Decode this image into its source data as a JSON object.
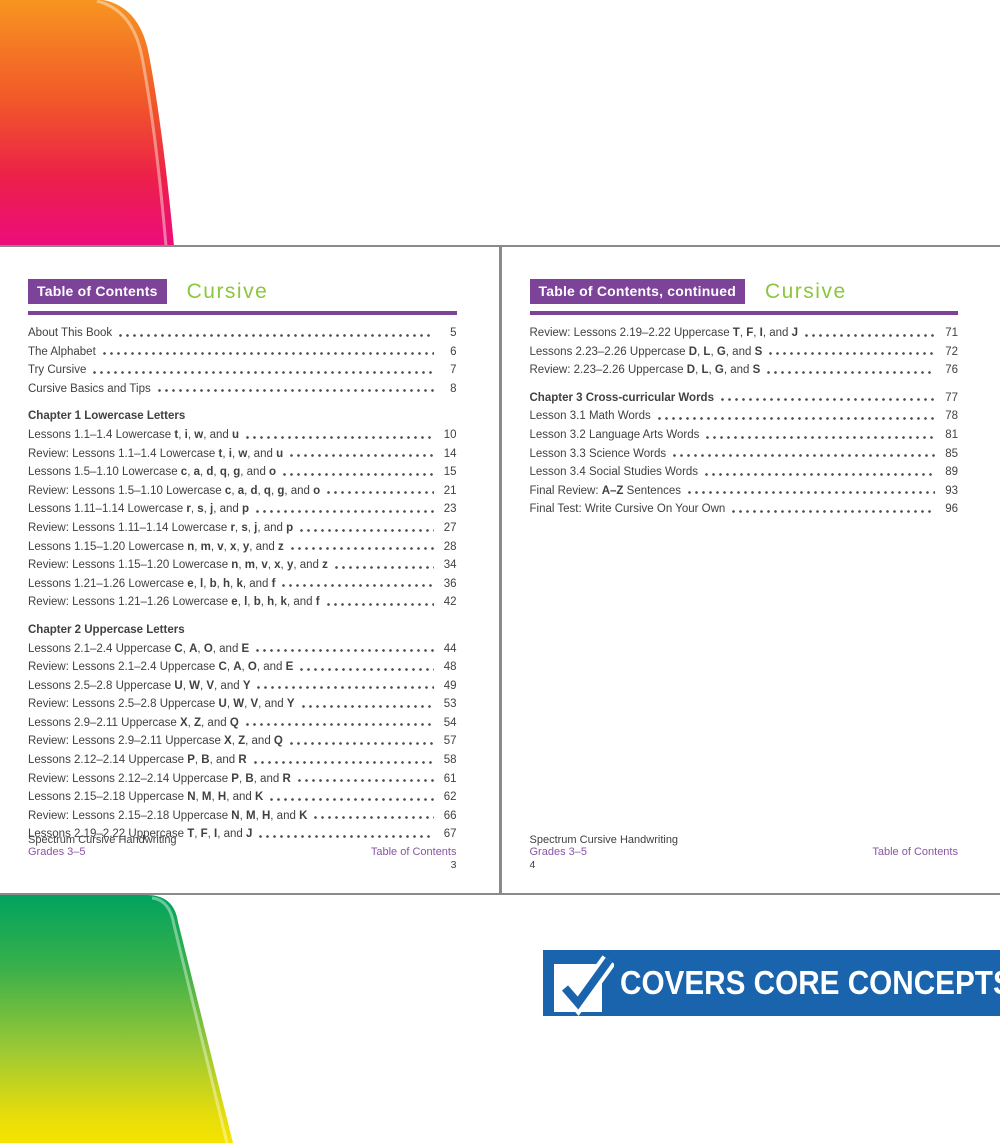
{
  "colors": {
    "purple": "#7c4399",
    "footer_purple": "#8a56a5",
    "green": "#8cc63e",
    "text": "#414042",
    "banner_blue": "#1a64ad",
    "page_border": "#8a8a8a"
  },
  "left_page": {
    "badge": "Table of Contents",
    "subtitle": "Cursive",
    "sections": [
      {
        "heading": null,
        "entries": [
          {
            "label": "About This Book",
            "page": "5"
          },
          {
            "label": "The Alphabet",
            "page": "6"
          },
          {
            "label": "Try Cursive",
            "page": "7"
          },
          {
            "label": "Cursive Basics and Tips",
            "page": "8"
          }
        ]
      },
      {
        "heading": "Chapter 1 Lowercase Letters",
        "entries": [
          {
            "label": "Lessons 1.1–1.4 Lowercase **t**, **i**, **w**, and **u**",
            "page": "10"
          },
          {
            "label": "Review: Lessons 1.1–1.4 Lowercase **t**, **i**, **w**, and **u**",
            "page": "14"
          },
          {
            "label": "Lessons 1.5–1.10 Lowercase **c**, **a**, **d**, **q**, **g**, and **o**",
            "page": "15"
          },
          {
            "label": "Review: Lessons 1.5–1.10 Lowercase **c**, **a**, **d**, **q**, **g**, and **o**",
            "page": "21"
          },
          {
            "label": "Lessons 1.11–1.14 Lowercase **r**, **s**, **j**, and **p**",
            "page": "23"
          },
          {
            "label": "Review: Lessons 1.11–1.14 Lowercase **r**, **s**, **j**, and **p**",
            "page": "27"
          },
          {
            "label": "Lessons 1.15–1.20 Lowercase **n**, **m**, **v**, **x**, **y**, and **z**",
            "page": "28"
          },
          {
            "label": "Review: Lessons 1.15–1.20 Lowercase **n**, **m**, **v**, **x**, **y**, and **z**",
            "page": "34"
          },
          {
            "label": "Lessons 1.21–1.26 Lowercase **e**, **l**, **b**, **h**, **k**, and **f**",
            "page": "36"
          },
          {
            "label": "Review: Lessons 1.21–1.26 Lowercase **e**, **l**, **b**, **h**, **k**, and **f**",
            "page": "42"
          }
        ]
      },
      {
        "heading": "Chapter 2 Uppercase Letters",
        "entries": [
          {
            "label": "Lessons 2.1–2.4 Uppercase **C**, **A**, **O**, and **E**",
            "page": "44"
          },
          {
            "label": "Review: Lessons 2.1–2.4 Uppercase **C**, **A**, **O**, and **E**",
            "page": "48"
          },
          {
            "label": "Lessons 2.5–2.8 Uppercase **U**, **W**, **V**, and **Y**",
            "page": "49"
          },
          {
            "label": "Review: Lessons 2.5–2.8 Uppercase **U**, **W**, **V**, and **Y**",
            "page": "53"
          },
          {
            "label": "Lessons 2.9–2.11 Uppercase **X**, **Z**, and **Q**",
            "page": "54"
          },
          {
            "label": "Review: Lessons 2.9–2.11 Uppercase **X**, **Z**, and **Q**",
            "page": "57"
          },
          {
            "label": "Lessons 2.12–2.14 Uppercase **P**, **B**, and **R**",
            "page": "58"
          },
          {
            "label": "Review: Lessons 2.12–2.14 Uppercase **P**, **B**, and **R**",
            "page": "61"
          },
          {
            "label": "Lessons 2.15–2.18 Uppercase **N**, **M**, **H**, and **K**",
            "page": "62"
          },
          {
            "label": "Review: Lessons 2.15–2.18 Uppercase **N**, **M**, **H**, and **K**",
            "page": "66"
          },
          {
            "label": "Lessons 2.19–2.22 Uppercase **T**, **F**, **I**, and **J**",
            "page": "67"
          }
        ]
      }
    ],
    "footer": {
      "series": "Spectrum Cursive Handwriting",
      "grades": "Grades 3–5",
      "section_label": "Table of Contents",
      "page_number": "3"
    }
  },
  "right_page": {
    "badge": "Table of Contents, continued",
    "subtitle": "Cursive",
    "sections": [
      {
        "heading": null,
        "entries": [
          {
            "label": "Review: Lessons 2.19–2.22 Uppercase **T**, **F**, **I**, and **J**",
            "page": "71"
          },
          {
            "label": "Lessons 2.23–2.26 Uppercase **D**, **L**, **G**, and **S**",
            "page": "72"
          },
          {
            "label": "Review: 2.23–2.26 Uppercase **D**, **L**, **G**, and **S**",
            "page": "76"
          }
        ]
      },
      {
        "heading": null,
        "entries": [
          {
            "label": "Chapter 3 Cross-curricular Words",
            "page": "77",
            "bold": true
          },
          {
            "label": "Lesson 3.1 Math Words",
            "page": "78"
          },
          {
            "label": "Lesson 3.2 Language Arts Words",
            "page": "81"
          },
          {
            "label": "Lesson 3.3 Science Words",
            "page": "85"
          },
          {
            "label": "Lesson 3.4 Social Studies Words",
            "page": "89"
          },
          {
            "label": "Final Review: **A–Z** Sentences",
            "page": "93"
          },
          {
            "label": "Final Test: Write Cursive On Your Own",
            "page": "96"
          }
        ]
      }
    ],
    "footer": {
      "series": "Spectrum Cursive Handwriting",
      "grades": "Grades 3–5",
      "section_label": "Table of Contents",
      "page_number": "4"
    }
  },
  "banner": {
    "text": "COVERS CORE CONCEPTS",
    "icon": "checkmark-icon"
  }
}
